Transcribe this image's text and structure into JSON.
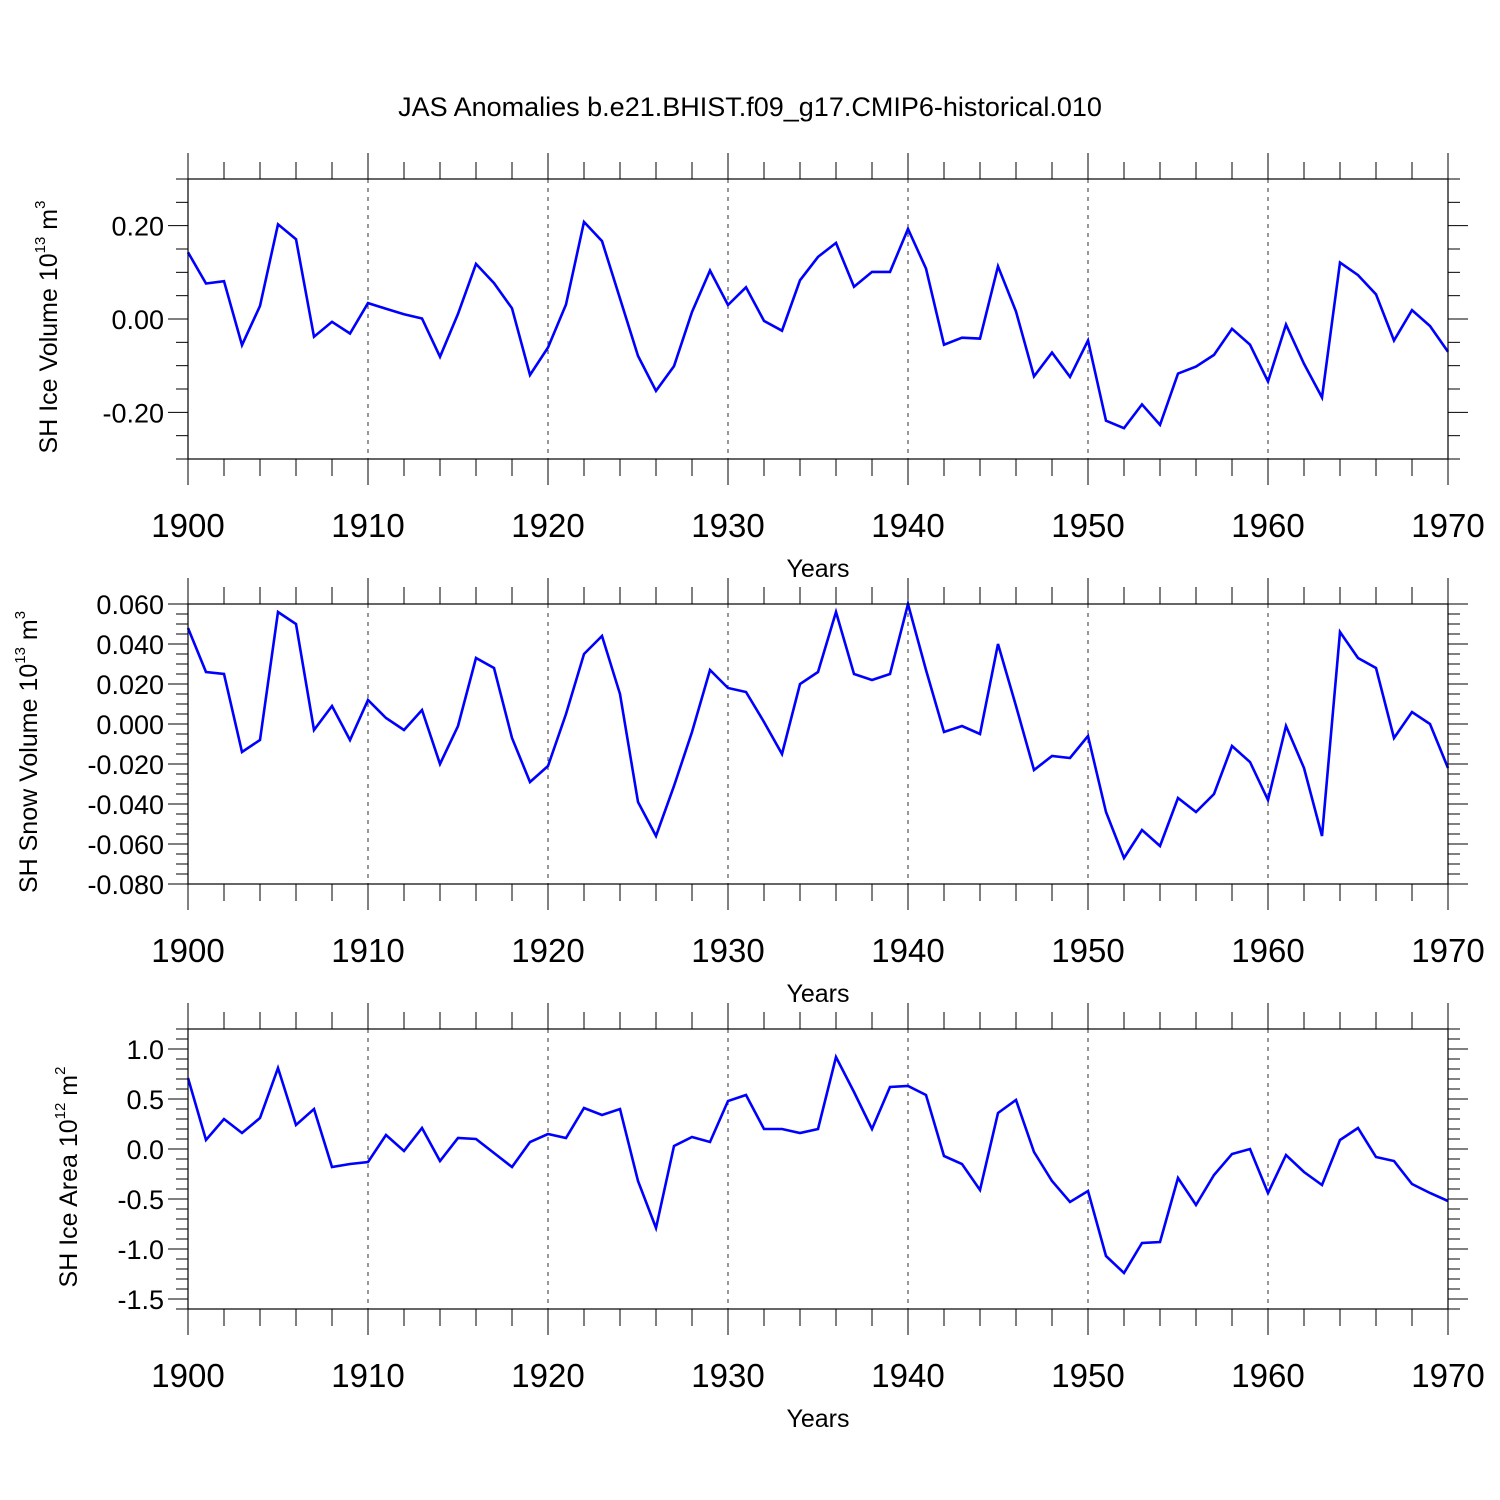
{
  "title": "JAS Anomalies b.e21.BHIST.f09_g17.CMIP6-historical.010",
  "chart_data": [
    {
      "type": "line",
      "ylabel": {
        "text": "SH Ice Volume 10",
        "exponent": "13",
        "unit": " m",
        "unit_exponent": "3"
      },
      "xlabel": "Years",
      "xlim": [
        1900,
        1970
      ],
      "ylim": [
        -0.3,
        0.3
      ],
      "x_ticks": [
        1900,
        1910,
        1920,
        1930,
        1940,
        1950,
        1960,
        1970
      ],
      "x_tick_labels": [
        "1900",
        "1910",
        "1920",
        "1930",
        "1940",
        "1950",
        "1960",
        "1970"
      ],
      "y_ticks": [
        -0.2,
        0.0,
        0.2
      ],
      "y_tick_labels": [
        "-0.20",
        "0.00",
        "0.20"
      ],
      "y_minor_step": 0.05,
      "grid": "dashed vertical at decades",
      "series": [
        {
          "name": "SH Ice Volume",
          "color": "#0000ff",
          "x_start": 1900,
          "values": [
            0.143,
            0.076,
            0.081,
            -0.056,
            0.028,
            0.203,
            0.171,
            -0.038,
            -0.006,
            -0.031,
            0.034,
            0.022,
            0.01,
            0.001,
            -0.081,
            0.011,
            0.118,
            0.077,
            0.023,
            -0.12,
            -0.061,
            0.031,
            0.208,
            0.167,
            0.044,
            -0.079,
            -0.154,
            -0.101,
            0.015,
            0.104,
            0.03,
            0.068,
            -0.004,
            -0.025,
            0.083,
            0.133,
            0.163,
            0.069,
            0.101,
            0.101,
            0.193,
            0.108,
            -0.055,
            -0.04,
            -0.042,
            0.113,
            0.016,
            -0.123,
            -0.072,
            -0.124,
            -0.046,
            -0.218,
            -0.234,
            -0.183,
            -0.227,
            -0.117,
            -0.102,
            -0.077,
            -0.021,
            -0.055,
            -0.134,
            -0.012,
            -0.096,
            -0.168,
            0.121,
            0.094,
            0.053,
            -0.046,
            0.019,
            -0.015,
            -0.07
          ]
        }
      ]
    },
    {
      "type": "line",
      "ylabel": {
        "text": "SH Snow Volume 10",
        "exponent": "13",
        "unit": " m",
        "unit_exponent": "3"
      },
      "xlabel": "Years",
      "xlim": [
        1900,
        1970
      ],
      "ylim": [
        -0.08,
        0.06
      ],
      "x_ticks": [
        1900,
        1910,
        1920,
        1930,
        1940,
        1950,
        1960,
        1970
      ],
      "x_tick_labels": [
        "1900",
        "1910",
        "1920",
        "1930",
        "1940",
        "1950",
        "1960",
        "1970"
      ],
      "y_ticks": [
        -0.08,
        -0.06,
        -0.04,
        -0.02,
        0.0,
        0.02,
        0.04,
        0.06
      ],
      "y_tick_labels": [
        "-0.080",
        "-0.060",
        "-0.040",
        "-0.020",
        "0.000",
        "0.020",
        "0.040",
        "0.060"
      ],
      "y_minor_step": 0.005,
      "grid": "dashed vertical at decades",
      "series": [
        {
          "name": "SH Snow Volume",
          "color": "#0000ff",
          "x_start": 1900,
          "values": [
            0.048,
            0.026,
            0.025,
            -0.014,
            -0.008,
            0.056,
            0.05,
            -0.003,
            0.009,
            -0.008,
            0.012,
            0.003,
            -0.003,
            0.007,
            -0.02,
            -0.001,
            0.033,
            0.028,
            -0.007,
            -0.029,
            -0.021,
            0.005,
            0.035,
            0.044,
            0.015,
            -0.039,
            -0.056,
            -0.031,
            -0.004,
            0.027,
            0.018,
            0.016,
            0.001,
            -0.015,
            0.02,
            0.026,
            0.056,
            0.025,
            0.022,
            0.025,
            0.06,
            0.027,
            -0.004,
            -0.001,
            -0.005,
            0.04,
            0.009,
            -0.023,
            -0.016,
            -0.017,
            -0.006,
            -0.044,
            -0.067,
            -0.053,
            -0.061,
            -0.037,
            -0.044,
            -0.035,
            -0.011,
            -0.019,
            -0.038,
            -0.001,
            -0.022,
            -0.056,
            0.046,
            0.033,
            0.028,
            -0.007,
            0.006,
            0.0,
            -0.022
          ]
        }
      ]
    },
    {
      "type": "line",
      "ylabel": {
        "text": "SH Ice Area 10",
        "exponent": "12",
        "unit": " m",
        "unit_exponent": "2"
      },
      "xlabel": "Years",
      "xlim": [
        1900,
        1970
      ],
      "ylim": [
        -1.6,
        1.2
      ],
      "x_ticks": [
        1900,
        1910,
        1920,
        1930,
        1940,
        1950,
        1960,
        1970
      ],
      "x_tick_labels": [
        "1900",
        "1910",
        "1920",
        "1930",
        "1940",
        "1950",
        "1960",
        "1970"
      ],
      "y_ticks": [
        -1.5,
        -1.0,
        -0.5,
        0.0,
        0.5,
        1.0
      ],
      "y_tick_labels": [
        "-1.5",
        "-1.0",
        "-0.5",
        "0.0",
        "0.5",
        "1.0"
      ],
      "y_minor_step": 0.1,
      "grid": "dashed vertical at decades",
      "series": [
        {
          "name": "SH Ice Area",
          "color": "#0000ff",
          "x_start": 1900,
          "values": [
            0.71,
            0.09,
            0.3,
            0.16,
            0.31,
            0.81,
            0.24,
            0.4,
            -0.18,
            -0.15,
            -0.13,
            0.14,
            -0.02,
            0.21,
            -0.12,
            0.11,
            0.1,
            -0.04,
            -0.18,
            0.07,
            0.15,
            0.11,
            0.41,
            0.34,
            0.4,
            -0.32,
            -0.79,
            0.03,
            0.12,
            0.07,
            0.48,
            0.54,
            0.2,
            0.2,
            0.16,
            0.2,
            0.92,
            0.57,
            0.2,
            0.62,
            0.63,
            0.54,
            -0.07,
            -0.15,
            -0.41,
            0.36,
            0.49,
            -0.03,
            -0.32,
            -0.53,
            -0.42,
            -1.07,
            -1.24,
            -0.94,
            -0.93,
            -0.29,
            -0.56,
            -0.26,
            -0.05,
            0.0,
            -0.44,
            -0.06,
            -0.23,
            -0.36,
            0.09,
            0.21,
            -0.08,
            -0.12,
            -0.35,
            -0.44,
            -0.52
          ]
        }
      ]
    }
  ]
}
